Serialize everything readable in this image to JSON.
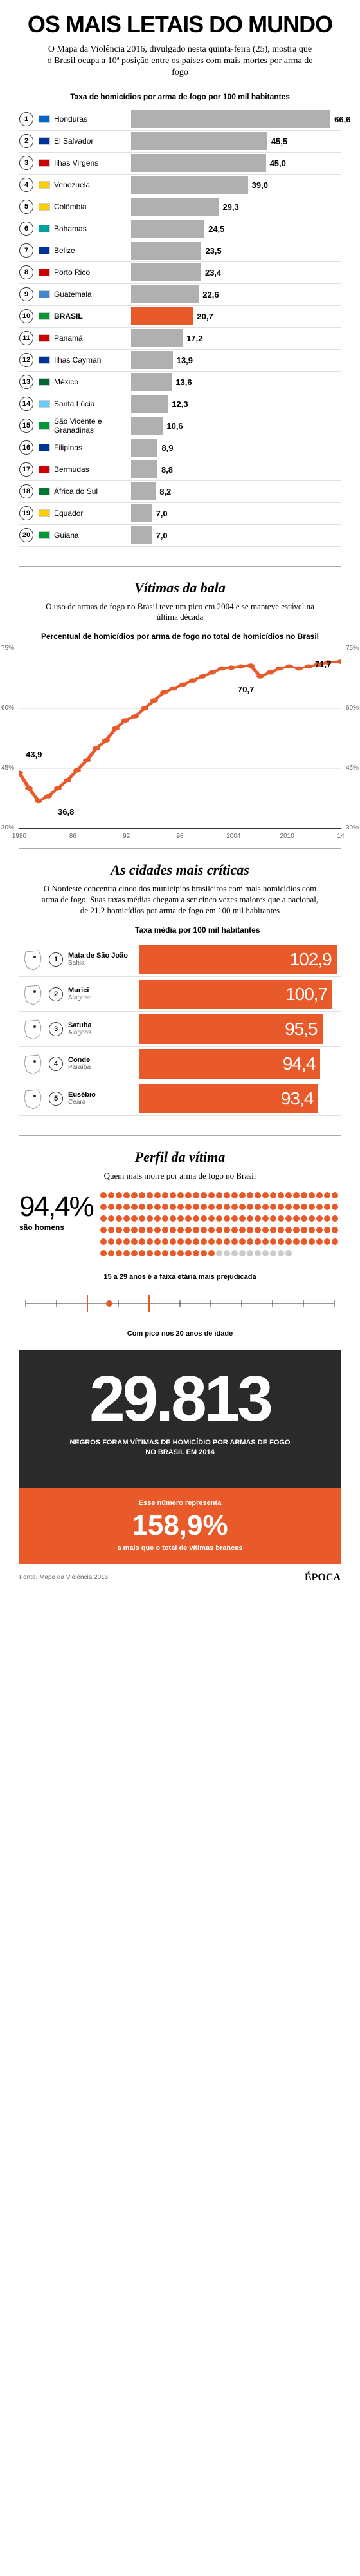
{
  "header": {
    "title": "OS MAIS LETAIS DO MUNDO",
    "subtitle": "O Mapa da Violência 2016, divulgado nesta quinta-feira (25), mostra que o Brasil ocupa a 10ª posição entre os países com mais mortes por arma de fogo",
    "chart_label": "Taxa de homicídios por arma de fogo por 100 mil habitantes"
  },
  "countries": {
    "bar_color": "#b0b0b0",
    "highlight_color": "#e85a2a",
    "max_value": 70,
    "items": [
      {
        "rank": "1",
        "flag": "#0066cc",
        "name": "Honduras",
        "value": "66,6",
        "num": 66.6,
        "hl": false
      },
      {
        "rank": "2",
        "flag": "#003399",
        "name": "El Salvador",
        "value": "45,5",
        "num": 45.5,
        "hl": false
      },
      {
        "rank": "3",
        "flag": "#cc0000",
        "name": "Ilhas Virgens",
        "value": "45,0",
        "num": 45.0,
        "hl": false
      },
      {
        "rank": "4",
        "flag": "#ffcc00",
        "name": "Venezuela",
        "value": "39,0",
        "num": 39.0,
        "hl": false
      },
      {
        "rank": "5",
        "flag": "#ffcc00",
        "name": "Colômbia",
        "value": "29,3",
        "num": 29.3,
        "hl": false
      },
      {
        "rank": "6",
        "flag": "#00a0a0",
        "name": "Bahamas",
        "value": "24,5",
        "num": 24.5,
        "hl": false
      },
      {
        "rank": "7",
        "flag": "#003399",
        "name": "Belize",
        "value": "23,5",
        "num": 23.5,
        "hl": false
      },
      {
        "rank": "8",
        "flag": "#cc0000",
        "name": "Porto Rico",
        "value": "23,4",
        "num": 23.4,
        "hl": false
      },
      {
        "rank": "9",
        "flag": "#4488cc",
        "name": "Guatemala",
        "value": "22,6",
        "num": 22.6,
        "hl": false
      },
      {
        "rank": "10",
        "flag": "#009933",
        "name": "BRASIL",
        "value": "20,7",
        "num": 20.7,
        "hl": true
      },
      {
        "rank": "11",
        "flag": "#cc0000",
        "name": "Panamá",
        "value": "17,2",
        "num": 17.2,
        "hl": false
      },
      {
        "rank": "12",
        "flag": "#003399",
        "name": "Ilhas Cayman",
        "value": "13,9",
        "num": 13.9,
        "hl": false
      },
      {
        "rank": "13",
        "flag": "#006633",
        "name": "México",
        "value": "13,6",
        "num": 13.6,
        "hl": false
      },
      {
        "rank": "14",
        "flag": "#66ccff",
        "name": "Santa Lúcia",
        "value": "12,3",
        "num": 12.3,
        "hl": false
      },
      {
        "rank": "15",
        "flag": "#009933",
        "name": "São Vicente e Granadinas",
        "value": "10,6",
        "num": 10.6,
        "hl": false
      },
      {
        "rank": "16",
        "flag": "#003399",
        "name": "Filipinas",
        "value": "8,9",
        "num": 8.9,
        "hl": false
      },
      {
        "rank": "17",
        "flag": "#cc0000",
        "name": "Bermudas",
        "value": "8,8",
        "num": 8.8,
        "hl": false
      },
      {
        "rank": "18",
        "flag": "#007733",
        "name": "África do Sul",
        "value": "8,2",
        "num": 8.2,
        "hl": false
      },
      {
        "rank": "19",
        "flag": "#ffcc00",
        "name": "Equador",
        "value": "7,0",
        "num": 7.0,
        "hl": false
      },
      {
        "rank": "20",
        "flag": "#009933",
        "name": "Guiana",
        "value": "7,0",
        "num": 7.0,
        "hl": false
      }
    ]
  },
  "line_section": {
    "title": "Vítimas da bala",
    "subtitle": "O uso de armas de fogo no Brasil teve um pico em 2004 e se manteve estável na última década",
    "chart_label": "Percentual de homicídios por arma de fogo no total de homicídios no Brasil",
    "line_color": "#e85a2a",
    "grid_color": "#cccccc",
    "ylim": [
      30,
      75
    ],
    "yticks": [
      "30%",
      "45%",
      "60%",
      "75%"
    ],
    "xticks": [
      "1980",
      "86",
      "92",
      "98",
      "2004",
      "2010",
      "14"
    ],
    "labels": [
      {
        "v": "43,9",
        "x": 2,
        "y": 56
      },
      {
        "v": "36,8",
        "x": 12,
        "y": 88
      },
      {
        "v": "70,7",
        "x": 68,
        "y": 20
      },
      {
        "v": "71,7",
        "x": 92,
        "y": 6
      }
    ],
    "points": [
      [
        0,
        43.9
      ],
      [
        3,
        40
      ],
      [
        6,
        36.8
      ],
      [
        9,
        38
      ],
      [
        12,
        40
      ],
      [
        15,
        42
      ],
      [
        18,
        44.5
      ],
      [
        21,
        47
      ],
      [
        24,
        50
      ],
      [
        27,
        52
      ],
      [
        30,
        55
      ],
      [
        33,
        57
      ],
      [
        36,
        58
      ],
      [
        39,
        60
      ],
      [
        42,
        62
      ],
      [
        45,
        64
      ],
      [
        48,
        65
      ],
      [
        51,
        66
      ],
      [
        54,
        67
      ],
      [
        57,
        68
      ],
      [
        60,
        69
      ],
      [
        63,
        70
      ],
      [
        66,
        70.2
      ],
      [
        69,
        70.5
      ],
      [
        72,
        70.7
      ],
      [
        75,
        68
      ],
      [
        78,
        69
      ],
      [
        81,
        70
      ],
      [
        84,
        70.5
      ],
      [
        87,
        70
      ],
      [
        90,
        70.5
      ],
      [
        93,
        71
      ],
      [
        96,
        71.5
      ],
      [
        100,
        71.7
      ]
    ]
  },
  "cities_section": {
    "title": "As cidades mais críticas",
    "subtitle": "O Nordeste concentra cinco dos municípios brasileiros com mais homicídios com arma de fogo. Suas taxas médias chegam a ser cinco vezes maiores que a nacional, de 21,2 homicídios por arma de fogo em 100 mil habitantes",
    "chart_label": "Taxa média por 100 mil habitantes",
    "bar_color": "#e85a2a",
    "max_value": 105,
    "items": [
      {
        "rank": "1",
        "name": "Mata de São João",
        "state": "Bahia",
        "value": "102,9",
        "num": 102.9
      },
      {
        "rank": "2",
        "name": "Murici",
        "state": "Alagoas",
        "value": "100,7",
        "num": 100.7
      },
      {
        "rank": "3",
        "name": "Satuba",
        "state": "Alagoas",
        "value": "95,5",
        "num": 95.5
      },
      {
        "rank": "4",
        "name": "Conde",
        "state": "Paraíba",
        "value": "94,4",
        "num": 94.4
      },
      {
        "rank": "5",
        "name": "Eusébio",
        "state": "Ceará",
        "value": "93,4",
        "num": 93.4
      }
    ]
  },
  "profile_section": {
    "title": "Perfil da vítima",
    "subtitle": "Quem mais morre por arma de fogo no Brasil",
    "pct": "94,4%",
    "pct_label": "são homens",
    "dot_total": 180,
    "dot_orange": 170,
    "dot_color_on": "#e85a2a",
    "dot_color_off": "#cccccc",
    "age_label": "15 a 29 anos é a faixa etária mais prejudicada",
    "peak_label": "Com pico nos 20 anos de idade"
  },
  "dark_section": {
    "number": "29.813",
    "text": "NEGROS FORAM VÍTIMAS DE HOMICÍDIO POR ARMAS DE FOGO NO BRASIL EM 2014",
    "orange_intro": "Esse número representa",
    "orange_pct": "158,9%",
    "orange_text": "a mais que o total de vítimas brancas"
  },
  "footer": {
    "source": "Fonte: Mapa da Violência 2016",
    "logo": "ÉPOCA"
  }
}
